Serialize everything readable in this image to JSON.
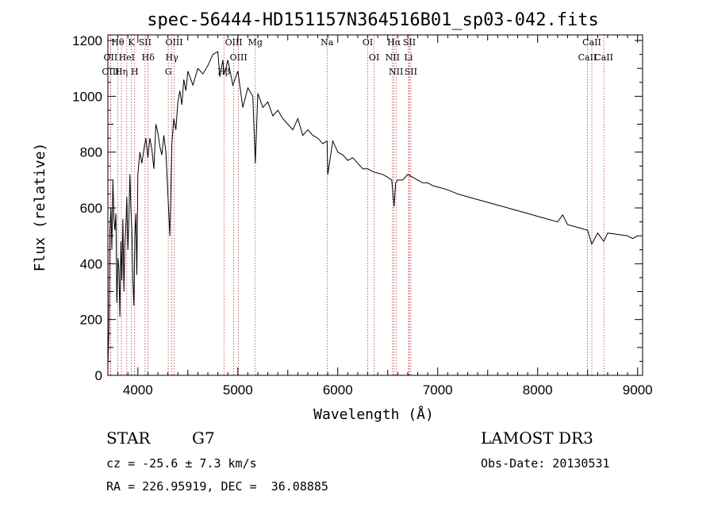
{
  "chart_data": {
    "type": "line",
    "title": "spec-56444-HD151157N364516B01_sp03-042.fits",
    "xlabel": "Wavelength (Å)",
    "ylabel": "Flux (relative)",
    "xlim": [
      3700,
      9050
    ],
    "ylim": [
      0,
      1220
    ],
    "xticks": [
      4000,
      5000,
      6000,
      7000,
      8000,
      9000
    ],
    "yticks": [
      0,
      200,
      400,
      600,
      800,
      1000,
      1200
    ],
    "series": [
      {
        "name": "flux",
        "x": [
          3700,
          3710,
          3720,
          3730,
          3740,
          3750,
          3760,
          3770,
          3780,
          3790,
          3800,
          3810,
          3820,
          3830,
          3840,
          3850,
          3860,
          3870,
          3880,
          3890,
          3900,
          3910,
          3920,
          3930,
          3940,
          3950,
          3960,
          3970,
          3980,
          3990,
          4000,
          4020,
          4040,
          4060,
          4080,
          4100,
          4120,
          4140,
          4160,
          4180,
          4200,
          4220,
          4240,
          4260,
          4280,
          4300,
          4320,
          4340,
          4360,
          4380,
          4400,
          4420,
          4440,
          4460,
          4480,
          4500,
          4550,
          4600,
          4650,
          4700,
          4750,
          4800,
          4820,
          4850,
          4861,
          4880,
          4900,
          4950,
          5000,
          5050,
          5100,
          5150,
          5175,
          5200,
          5250,
          5300,
          5350,
          5400,
          5450,
          5500,
          5550,
          5600,
          5650,
          5700,
          5750,
          5800,
          5850,
          5893,
          5900,
          5950,
          6000,
          6050,
          6100,
          6150,
          6200,
          6250,
          6300,
          6350,
          6400,
          6450,
          6500,
          6540,
          6563,
          6580,
          6600,
          6650,
          6700,
          6750,
          6800,
          6850,
          6900,
          6950,
          7000,
          7100,
          7200,
          7300,
          7400,
          7500,
          7600,
          7700,
          7800,
          7900,
          8000,
          8100,
          8200,
          8250,
          8300,
          8400,
          8500,
          8542,
          8600,
          8662,
          8700,
          8800,
          8900,
          8950,
          9000
        ],
        "y": [
          30,
          160,
          520,
          600,
          450,
          700,
          560,
          520,
          580,
          260,
          420,
          380,
          210,
          480,
          340,
          560,
          300,
          470,
          540,
          640,
          450,
          560,
          720,
          600,
          520,
          340,
          250,
          500,
          580,
          360,
          720,
          800,
          760,
          810,
          850,
          780,
          850,
          810,
          740,
          900,
          870,
          820,
          790,
          860,
          800,
          650,
          500,
          830,
          920,
          880,
          980,
          1020,
          970,
          1060,
          1020,
          1090,
          1040,
          1100,
          1080,
          1110,
          1150,
          1160,
          1070,
          1130,
          1080,
          1100,
          1130,
          1040,
          1090,
          960,
          1030,
          1000,
          760,
          1010,
          960,
          980,
          930,
          950,
          920,
          900,
          880,
          920,
          860,
          880,
          860,
          850,
          830,
          840,
          720,
          840,
          800,
          790,
          770,
          780,
          760,
          740,
          740,
          730,
          725,
          720,
          710,
          700,
          605,
          690,
          700,
          700,
          720,
          710,
          700,
          690,
          690,
          680,
          675,
          665,
          650,
          640,
          630,
          620,
          610,
          600,
          590,
          580,
          570,
          560,
          550,
          575,
          540,
          530,
          520,
          470,
          510,
          480,
          510,
          505,
          500,
          490,
          500
        ]
      }
    ],
    "spectral_lines": [
      {
        "name": "Hθ",
        "wavelength": 3798
      },
      {
        "name": "OII",
        "wavelength": 3727
      },
      {
        "name": "OIII",
        "wavelength": 3727
      },
      {
        "name": "Hη",
        "wavelength": 3835
      },
      {
        "name": "HeI",
        "wavelength": 3889
      },
      {
        "name": "K",
        "wavelength": 3934
      },
      {
        "name": "H",
        "wavelength": 3968
      },
      {
        "name": "SII",
        "wavelength": 4072
      },
      {
        "name": "Hδ",
        "wavelength": 4102
      },
      {
        "name": "OIII",
        "wavelength": 4363
      },
      {
        "name": "Hγ",
        "wavelength": 4340
      },
      {
        "name": "G",
        "wavelength": 4304
      },
      {
        "name": "OIII",
        "wavelength": 4959
      },
      {
        "name": "OIII",
        "wavelength": 5007
      },
      {
        "name": "Hβ",
        "wavelength": 4861
      },
      {
        "name": "Mg",
        "wavelength": 5175
      },
      {
        "name": "Na",
        "wavelength": 5893
      },
      {
        "name": "OI",
        "wavelength": 6300
      },
      {
        "name": "OI",
        "wavelength": 6364
      },
      {
        "name": "Hα",
        "wavelength": 6563
      },
      {
        "name": "NII",
        "wavelength": 6548
      },
      {
        "name": "NII",
        "wavelength": 6583
      },
      {
        "name": "SII",
        "wavelength": 6716
      },
      {
        "name": "Li",
        "wavelength": 6708
      },
      {
        "name": "SII",
        "wavelength": 6731
      },
      {
        "name": "CaII",
        "wavelength": 8542
      },
      {
        "name": "CaII",
        "wavelength": 8498
      },
      {
        "name": "CaII",
        "wavelength": 8662
      }
    ]
  },
  "info": {
    "object_class": "STAR",
    "subclass": "G7",
    "survey": "LAMOST DR3",
    "redshift": "cz = -25.6 ± 7.3 km/s",
    "obs_date": "Obs-Date: 20130531",
    "coords": "RA = 226.95919, DEC =  36.08885"
  },
  "colors": {
    "line": "#000000",
    "marker": "#b22222",
    "background": "#ffffff"
  }
}
